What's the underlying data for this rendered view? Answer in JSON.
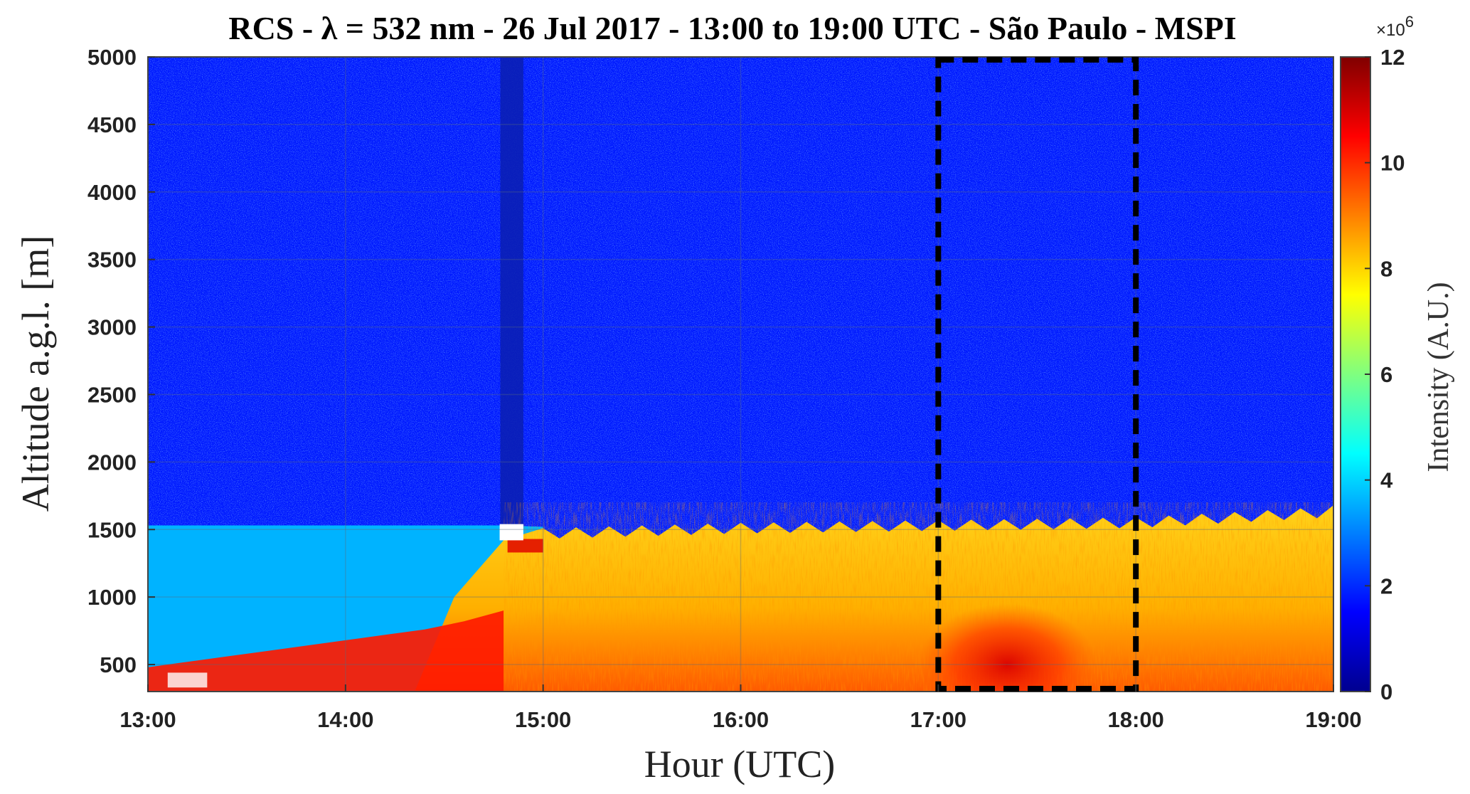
{
  "chart_data": {
    "type": "heatmap",
    "title": "RCS - λ = 532 nm - 26 Jul 2017 - 13:00 to 19:00 UTC - São Paulo - MSPI",
    "xlabel": "Hour (UTC)",
    "ylabel": "Altitude a.g.l. [m]",
    "x_ticks": [
      "13:00",
      "14:00",
      "15:00",
      "16:00",
      "17:00",
      "18:00",
      "19:00"
    ],
    "xlim": [
      "13:00",
      "19:00"
    ],
    "y_ticks": [
      500,
      1000,
      1500,
      2000,
      2500,
      3000,
      3500,
      4000,
      4500,
      5000
    ],
    "ylim": [
      300,
      5000
    ],
    "colorbar": {
      "label": "Intensity (A.U.)",
      "multiplier": "×10",
      "exponent": "6",
      "ticks": [
        0,
        2,
        4,
        6,
        8,
        10,
        12
      ],
      "range": [
        0,
        12
      ],
      "colormap": "jet"
    },
    "layers": {
      "boundary_layer_top_m": [
        [
          13.0,
          1530
        ],
        [
          14.0,
          1530
        ],
        [
          14.8,
          1530
        ],
        [
          15.0,
          1520
        ],
        [
          15.5,
          1540
        ],
        [
          16.0,
          1560
        ],
        [
          16.5,
          1570
        ],
        [
          17.0,
          1580
        ],
        [
          17.5,
          1590
        ],
        [
          18.0,
          1600
        ],
        [
          18.5,
          1640
        ],
        [
          19.0,
          1680
        ]
      ],
      "free_troposphere_intensity": 1.8,
      "residual_layer_intensity": 3.6,
      "mixed_layer_intensity_range": [
        7,
        11
      ]
    },
    "highlight_box": {
      "x_start": "17:00",
      "x_end": "18:00",
      "y_start": 300,
      "y_end": 5000,
      "style": "dashed",
      "color": "#000000"
    },
    "dark_stripe": {
      "x_start": "14:47",
      "x_end": "14:54",
      "y_top": 5000,
      "y_bottom": 1530
    },
    "grid": true,
    "legend": "none"
  }
}
